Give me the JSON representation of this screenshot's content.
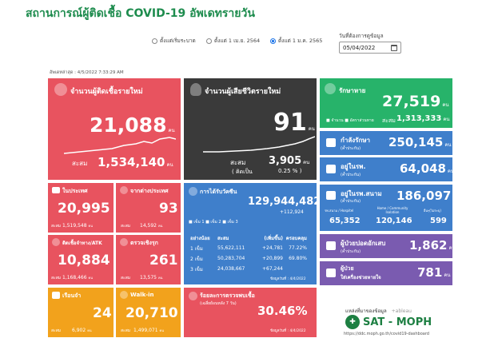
{
  "header": {
    "title": "สถานการณ์ผู้ติดเชื้อ COVID-19 อัพเดทรายวัน"
  },
  "filters": {
    "options": [
      "ตั้งแต่เริ่มระบาด",
      "ตั้งแต่ 1 เม.ย. 2564",
      "ตั้งแต่ 1 ม.ค. 2565"
    ],
    "selected_index": 2,
    "date_label": "วันที่ต้องการดูข้อมูล",
    "date_value": "05/04/2022"
  },
  "updated": "อัพเดทล่าสุด : 4/5/2022 7:33:29 AM",
  "new_cases": {
    "title": "จำนวนผู้ติดเชื้อรายใหม่",
    "value": "21,088",
    "unit": "คน",
    "total_label": "สะสม",
    "total": "1,534,140",
    "total_unit": "คน"
  },
  "new_deaths": {
    "title": "จำนวนผู้เสียชีวิตรายใหม่",
    "value": "91",
    "unit": "คน",
    "total_label": "สะสม",
    "total": "3,905",
    "total_unit": "คน",
    "pct_label": "( คิดเป็น",
    "pct": "0.25 % )"
  },
  "recovered": {
    "title": "รักษาหาย",
    "value": "27,519",
    "unit": "คน",
    "legend": "■ จำนวน  ■ อัตราส่วนหาย",
    "total_label": "สะสม",
    "total": "1,313,333",
    "total_unit": "คน"
  },
  "treating": {
    "title": "กำลังรักษา",
    "sub": "(ค้ำประกัน)",
    "value": "250,145",
    "unit": "คน"
  },
  "in_hospital": {
    "title": "อยู่ในรพ.",
    "sub": "(ค้ำประกัน)",
    "value": "64,048",
    "unit": "คน"
  },
  "field_hospital": {
    "title": "อยู่ในรพ.สนาม",
    "sub": "(ค้ำประกัน)",
    "value": "186,097",
    "unit": "คน",
    "cols": [
      {
        "label": "รพ.สนาม / Hospitel",
        "value": "65,352"
      },
      {
        "label": "Home / Community Isolation",
        "value": "120,146"
      },
      {
        "label": "อื่นๆ(ไม่ระบุ)",
        "value": "599"
      }
    ]
  },
  "severe": {
    "title": "ผู้ป่วยปอดอักเสบ",
    "sub": "(ค้ำประกัน)",
    "value": "1,862",
    "unit": "คน"
  },
  "ventilator": {
    "title": "ผู้ป่วย",
    "title2": "ใส่เครื่องช่วยหายใจ",
    "value": "781",
    "unit": "คน"
  },
  "domestic": {
    "title": "ในประเทศ",
    "value": "20,995",
    "total_label": "สะสม",
    "total": "1,519,548",
    "total_unit": "คน"
  },
  "imported": {
    "title": "จากต่างประเทศ",
    "value": "93",
    "total_label": "สะสม",
    "total": "14,592",
    "total_unit": "คน"
  },
  "atk": {
    "title": "ติดเชื้อจำทาง/ATK",
    "value": "10,884",
    "total_label": "สะสม",
    "total": "1,168,466",
    "total_unit": "คน"
  },
  "active_search": {
    "title": "ตรวจเชิงรุก",
    "value": "261",
    "total_label": "สะสม",
    "total": "13,575",
    "total_unit": "คน"
  },
  "prison": {
    "title": "เรือนจำ",
    "value": "24",
    "total_label": "สะสม",
    "total": "6,902",
    "total_unit": "คน"
  },
  "walkin": {
    "title": "Walk-in",
    "value": "20,710",
    "total_label": "สะสม",
    "total": "1,499,071",
    "total_unit": "คน"
  },
  "vaccine": {
    "title": "การได้รับวัคซีน",
    "total": "129,944,482",
    "delta": "+112,924",
    "legend": "■ เข็ม 1 ■ เข็ม 2 ■ เข็ม 3",
    "headers": [
      "อย่างน้อย",
      "สะสม",
      "(เพิ่มขึ้น)",
      "ครอบคลุม"
    ],
    "rows": [
      {
        "dose": "1 เข็ม",
        "total": "55,622,111",
        "delta": "+24,781",
        "pct": "77.22%"
      },
      {
        "dose": "2 เข็ม",
        "total": "50,283,704",
        "delta": "+20,899",
        "pct": "69.80%"
      },
      {
        "dose": "3 เข็ม",
        "total": "24,038,667",
        "delta": "+67,244",
        "pct": ""
      }
    ],
    "footnote": "ข้อมูลวันที่ : 4/4/2022"
  },
  "positivity": {
    "title": "ร้อยละการตรวจพบเชื้อ",
    "sub": "(เฉลี่ยย้อนหลัง 7 วัน)",
    "value": "30.46%",
    "footnote": "ข้อมูลวันที่ : 4/4/2022"
  },
  "source": {
    "label": "แหล่งที่มาของข้อมูล",
    "tableau": "+ableau",
    "org": "SAT - MOPH",
    "url": "https://ddc.moph.go.th/covid19-dashboard"
  }
}
